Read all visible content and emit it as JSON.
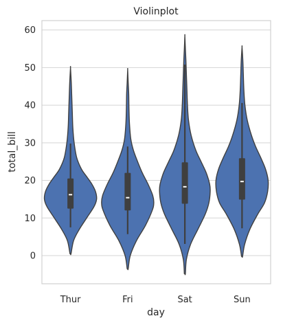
{
  "chart_data": {
    "type": "violin",
    "title": "Violinplot",
    "xlabel": "day",
    "ylabel": "total_bill",
    "categories": [
      "Thur",
      "Fri",
      "Sat",
      "Sun"
    ],
    "ylim": [
      -7.5,
      62.5
    ],
    "yticks": [
      0,
      10,
      20,
      30,
      40,
      50,
      60
    ],
    "grid": true,
    "fill_color": "#4c72b0",
    "edge_color": "#3f3f3f",
    "violins": [
      {
        "category": "Thur",
        "kde_min": 0.5,
        "kde_max": 50,
        "q1": 12.5,
        "median": 16.2,
        "q3": 20.5,
        "whisker_low": 7.5,
        "whisker_high": 29.8,
        "density": [
          [
            0.5,
            0.02
          ],
          [
            4,
            0.12
          ],
          [
            7,
            0.34
          ],
          [
            10,
            0.62
          ],
          [
            13,
            0.9
          ],
          [
            15,
            1.0
          ],
          [
            17,
            0.96
          ],
          [
            19,
            0.82
          ],
          [
            21,
            0.62
          ],
          [
            23,
            0.42
          ],
          [
            26,
            0.24
          ],
          [
            30,
            0.14
          ],
          [
            34,
            0.09
          ],
          [
            38,
            0.07
          ],
          [
            42,
            0.05
          ],
          [
            46,
            0.03
          ],
          [
            50,
            0.0
          ]
        ]
      },
      {
        "category": "Fri",
        "kde_min": -3.5,
        "kde_max": 49.5,
        "q1": 12,
        "median": 15.4,
        "q3": 22,
        "whisker_low": 5.7,
        "whisker_high": 29,
        "density": [
          [
            -3.5,
            0.02
          ],
          [
            0,
            0.1
          ],
          [
            4,
            0.34
          ],
          [
            8,
            0.68
          ],
          [
            12,
            0.94
          ],
          [
            14,
            1.0
          ],
          [
            16,
            0.96
          ],
          [
            19,
            0.78
          ],
          [
            22,
            0.56
          ],
          [
            25,
            0.38
          ],
          [
            28,
            0.22
          ],
          [
            31,
            0.12
          ],
          [
            35,
            0.07
          ],
          [
            39,
            0.05
          ],
          [
            43,
            0.04
          ],
          [
            46,
            0.02
          ],
          [
            49.5,
            0.0
          ]
        ]
      },
      {
        "category": "Sat",
        "kde_min": -4.8,
        "kde_max": 58.5,
        "q1": 13.8,
        "median": 18.3,
        "q3": 24.8,
        "whisker_low": 3.1,
        "whisker_high": 50.8,
        "density": [
          [
            -4.8,
            0.02
          ],
          [
            -1,
            0.06
          ],
          [
            3,
            0.22
          ],
          [
            7,
            0.5
          ],
          [
            11,
            0.78
          ],
          [
            14,
            0.92
          ],
          [
            17,
            0.97
          ],
          [
            19,
            0.95
          ],
          [
            22,
            0.82
          ],
          [
            25,
            0.62
          ],
          [
            28,
            0.42
          ],
          [
            32,
            0.24
          ],
          [
            36,
            0.14
          ],
          [
            40,
            0.1
          ],
          [
            44,
            0.08
          ],
          [
            48,
            0.06
          ],
          [
            52,
            0.04
          ],
          [
            55,
            0.02
          ],
          [
            58.5,
            0.0
          ]
        ]
      },
      {
        "category": "Sun",
        "kde_min": -0.2,
        "kde_max": 55.5,
        "q1": 14.9,
        "median": 19.7,
        "q3": 25.9,
        "whisker_low": 7.25,
        "whisker_high": 40.6,
        "density": [
          [
            -0.2,
            0.02
          ],
          [
            3,
            0.1
          ],
          [
            7,
            0.3
          ],
          [
            11,
            0.6
          ],
          [
            14,
            0.86
          ],
          [
            17,
            0.98
          ],
          [
            20,
            1.0
          ],
          [
            23,
            0.9
          ],
          [
            26,
            0.72
          ],
          [
            29,
            0.52
          ],
          [
            32,
            0.36
          ],
          [
            36,
            0.2
          ],
          [
            40,
            0.11
          ],
          [
            44,
            0.07
          ],
          [
            48,
            0.05
          ],
          [
            52,
            0.03
          ],
          [
            55.5,
            0.0
          ]
        ]
      }
    ]
  }
}
